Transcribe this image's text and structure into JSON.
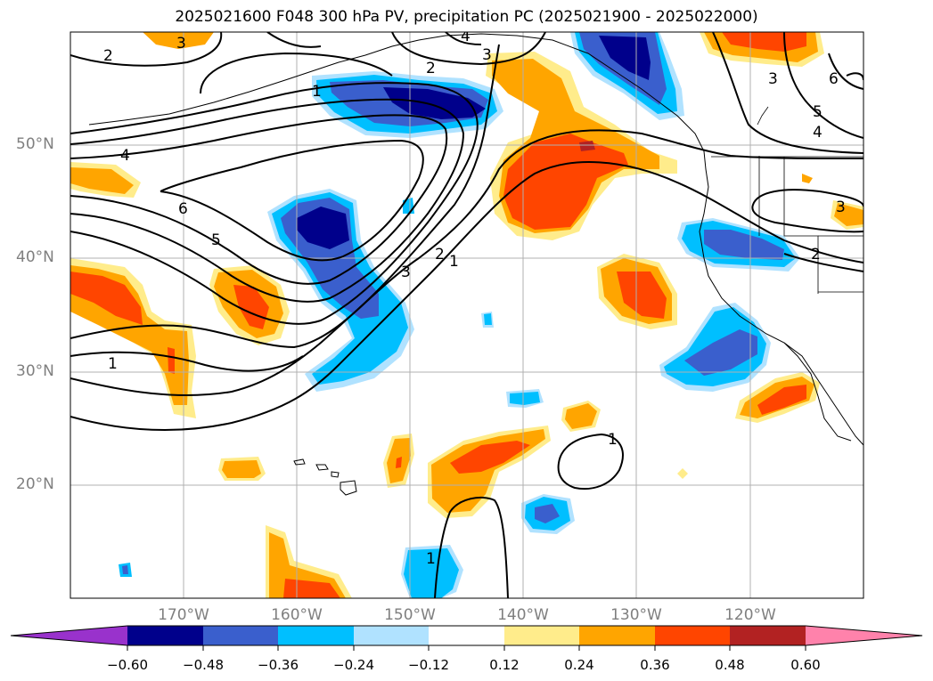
{
  "title": "2025021600 F048 300 hPa PV, precipitation PC (2025021900 - 2025022000)",
  "lat_labels": [
    "50°N",
    "40°N",
    "30°N",
    "20°N"
  ],
  "lon_labels": [
    "170°W",
    "160°W",
    "150°W",
    "140°W",
    "130°W",
    "120°W"
  ],
  "contour_labels": [
    "3",
    "2",
    "4",
    "3",
    "1",
    "2",
    "4",
    "6",
    "5",
    "3",
    "2",
    "1",
    "1",
    "1",
    "3",
    "5",
    "4",
    "6",
    "3",
    "2",
    "1"
  ],
  "colorbar": {
    "ticks": [
      "−0.60",
      "−0.48",
      "−0.36",
      "−0.24",
      "−0.12",
      "0.12",
      "0.24",
      "0.36",
      "0.48",
      "0.60"
    ],
    "colors": [
      "#9932cc",
      "#00008b",
      "#3a5fcd",
      "#00bfff",
      "#b0e2ff",
      "#ffffff",
      "#ffec8b",
      "#ffa500",
      "#ff4500",
      "#b22222",
      "#ff82ab"
    ]
  },
  "colors": {
    "land_outline": "#000000",
    "grid": "#b0b0b0",
    "contour": "#000000"
  }
}
